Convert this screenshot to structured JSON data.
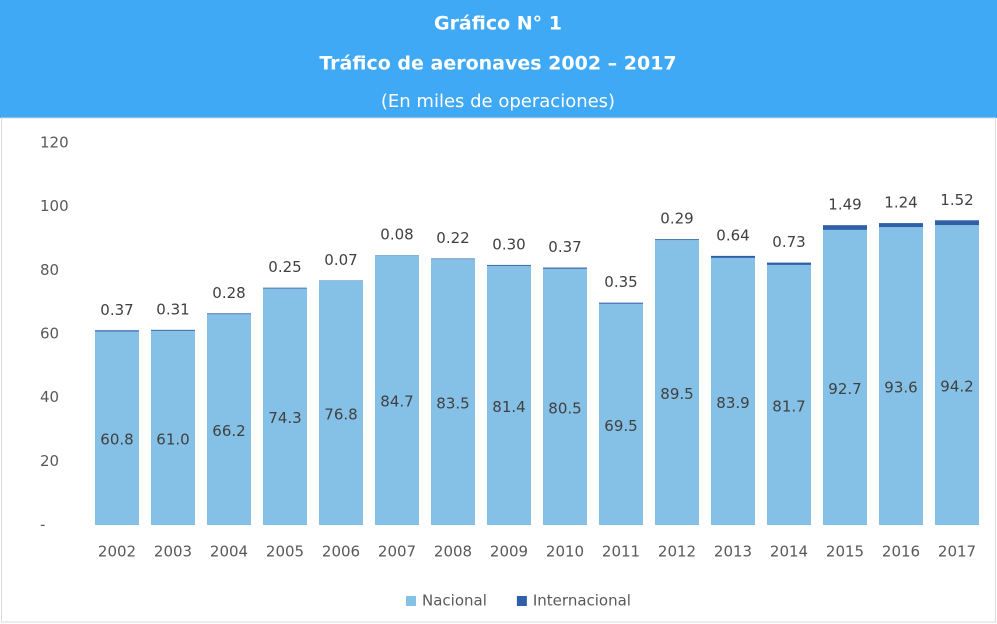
{
  "chart_data": {
    "type": "stacked_bar",
    "title": "Gráfico N° 1",
    "subtitle": "Tráfico de aeronaves 2002 – 2017",
    "note": "(En miles de operaciones)",
    "categories": [
      "2002",
      "2003",
      "2004",
      "2005",
      "2006",
      "2007",
      "2008",
      "2009",
      "2010",
      "2011",
      "2012",
      "2013",
      "2014",
      "2015",
      "2016",
      "2017"
    ],
    "series": [
      {
        "name": "Nacional",
        "color": "#85c1e6",
        "values": [
          60.8,
          61.0,
          66.2,
          74.3,
          76.8,
          84.7,
          83.5,
          81.4,
          80.5,
          69.5,
          89.5,
          83.9,
          81.7,
          92.7,
          93.6,
          94.2
        ],
        "value_labels": [
          "60.8",
          "61.0",
          "66.2",
          "74.3",
          "76.8",
          "84.7",
          "83.5",
          "81.4",
          "80.5",
          "69.5",
          "89.5",
          "83.9",
          "81.7",
          "92.7",
          "93.6",
          "94.2"
        ]
      },
      {
        "name": "Internacional",
        "color": "#2f5fa7",
        "values": [
          0.37,
          0.31,
          0.28,
          0.25,
          0.07,
          0.08,
          0.22,
          0.3,
          0.37,
          0.35,
          0.29,
          0.64,
          0.73,
          1.49,
          1.24,
          1.52
        ],
        "value_labels": [
          "0.37",
          "0.31",
          "0.28",
          "0.25",
          "0.07",
          "0.08",
          "0.22",
          "0.30",
          "0.37",
          "0.35",
          "0.29",
          "0.64",
          "0.73",
          "1.49",
          "1.24",
          "1.52"
        ]
      }
    ],
    "ylim": [
      0,
      120
    ],
    "yticks": [
      {
        "value": 0,
        "label": "-"
      },
      20,
      40,
      60,
      80,
      100,
      120
    ],
    "grid": false,
    "legend": "bottom"
  }
}
